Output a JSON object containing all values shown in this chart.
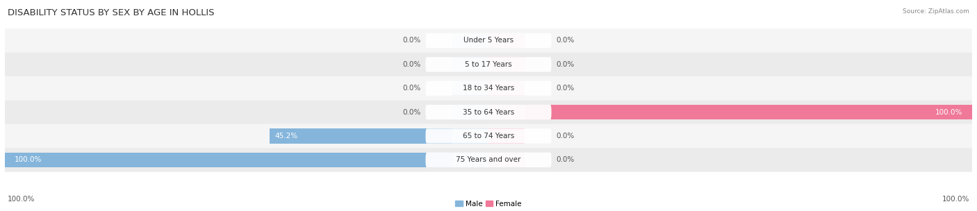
{
  "title": "DISABILITY STATUS BY SEX BY AGE IN HOLLIS",
  "source": "Source: ZipAtlas.com",
  "categories": [
    "Under 5 Years",
    "5 to 17 Years",
    "18 to 34 Years",
    "35 to 64 Years",
    "65 to 74 Years",
    "75 Years and over"
  ],
  "male_values": [
    0.0,
    0.0,
    0.0,
    0.0,
    45.2,
    100.0
  ],
  "female_values": [
    0.0,
    0.0,
    0.0,
    100.0,
    0.0,
    0.0
  ],
  "male_color": "#85b5db",
  "female_color": "#f07898",
  "male_color_light": "#aecde8",
  "female_color_light": "#f5aabf",
  "row_colors": [
    "#f5f5f5",
    "#ebebeb"
  ],
  "max_val": 100.0,
  "bar_height": 0.62,
  "figsize": [
    14.06,
    3.04
  ],
  "dpi": 100,
  "title_fontsize": 9.5,
  "label_fontsize": 7.5,
  "tick_fontsize": 7.5
}
